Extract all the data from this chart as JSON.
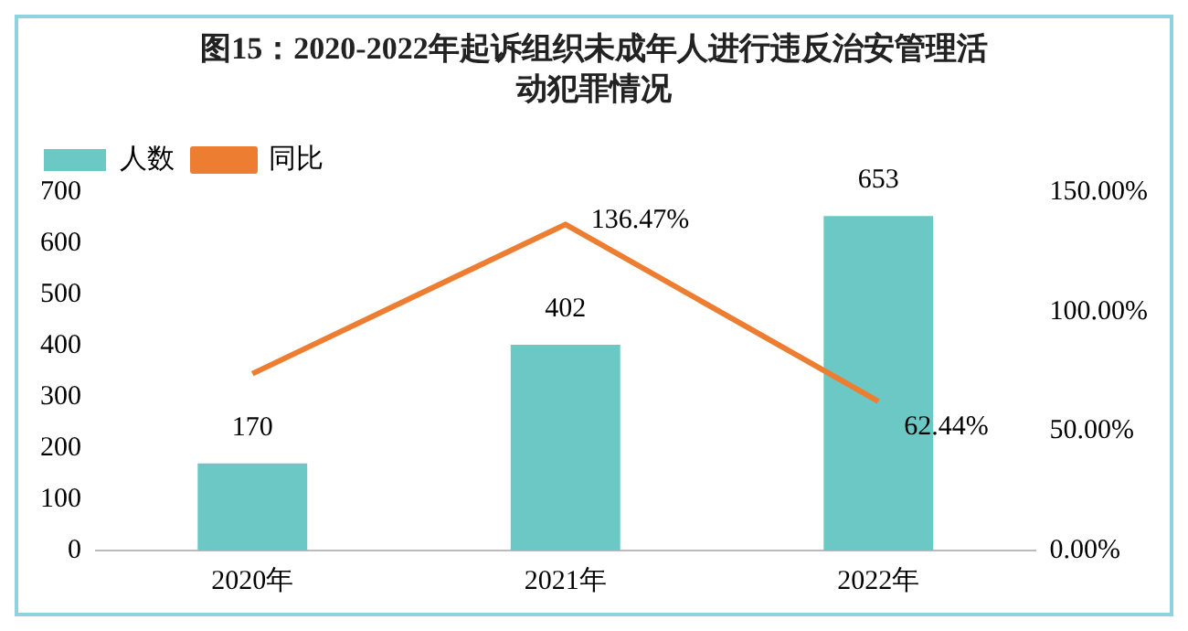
{
  "chart_data": {
    "type": "bar",
    "title": "图15：2020-2022年起诉组织未成年人进行违反治安管理活动犯罪情况",
    "categories": [
      "2020年",
      "2021年",
      "2022年"
    ],
    "series": [
      {
        "name": "人数",
        "color": "#6cc8c4",
        "values": [
          170,
          402,
          653
        ],
        "value_labels": [
          "170",
          "402",
          "653"
        ]
      },
      {
        "name": "同比",
        "type": "line",
        "axis": "y2",
        "color": "#ed7d31",
        "values": [
          74,
          136.47,
          62.44
        ],
        "value_labels": [
          null,
          "136.47%",
          "62.44%"
        ]
      }
    ],
    "ylim": [
      0,
      700
    ],
    "yticks": [
      0,
      100,
      200,
      300,
      400,
      500,
      600,
      700
    ],
    "y2lim": [
      0,
      150
    ],
    "y2ticks": [
      {
        "value": 0,
        "label": "0.00%"
      },
      {
        "value": 50,
        "label": "50.00%"
      },
      {
        "value": 100,
        "label": "100.00%"
      },
      {
        "value": 150,
        "label": "150.00%"
      }
    ],
    "grid": false,
    "legend": "top",
    "marker": "none",
    "line_style": "solid"
  }
}
